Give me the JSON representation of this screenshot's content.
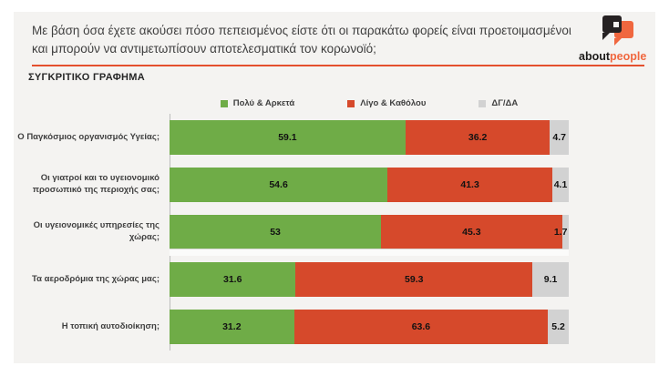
{
  "header": {
    "title": "Με βάση όσα έχετε ακούσει πόσο πεπεισμένος είστε ότι οι παρακάτω φορείς είναι προετοιμασμένοι και μπορούν να αντιμετωπίσουν αποτελεσματικά τον κορωνοϊό;",
    "logo": {
      "text_black": "about",
      "text_orange": "people"
    }
  },
  "section_title": "ΣΥΓΚΡΙΤΙΚΟ ΓΡΑΦΗΜΑ",
  "colors": {
    "green": "#6FAC47",
    "red": "#D6492B",
    "gray": "#D2D2D2",
    "accent_line": "#E4502E",
    "logo_orange": "#F0673F",
    "panel_bg": "#F4F3F1"
  },
  "chart_data": {
    "type": "bar",
    "orientation": "horizontal",
    "stacked_percent": true,
    "title": "ΣΥΓΚΡΙΤΙΚΟ ΓΡΑΦΗΜΑ",
    "xlim": [
      0,
      100
    ],
    "legend_position": "top",
    "value_labels": "inside",
    "grid": false,
    "categories": [
      "Ο Παγκόσμιος οργανισμός Υγείας;",
      "Οι γιατροί και το υγειονομικό προσωπικό της περιοχής σας;",
      "Οι υγειονομικές υπηρεσίες της χώρας;",
      "Τα αεροδρόμια της χώρας μας;",
      "Η τοπική αυτοδιοίκηση;"
    ],
    "series": [
      {
        "name": "Πολύ & Αρκετά",
        "color_key": "green",
        "values": [
          59.1,
          54.6,
          53,
          31.6,
          31.2
        ]
      },
      {
        "name": "Λίγο & Καθόλου",
        "color_key": "red",
        "values": [
          36.2,
          41.3,
          45.3,
          59.3,
          63.6
        ]
      },
      {
        "name": "ΔΓ/ΔΑ",
        "color_key": "gray",
        "values": [
          4.7,
          4.1,
          1.7,
          9.1,
          5.2
        ]
      }
    ]
  }
}
